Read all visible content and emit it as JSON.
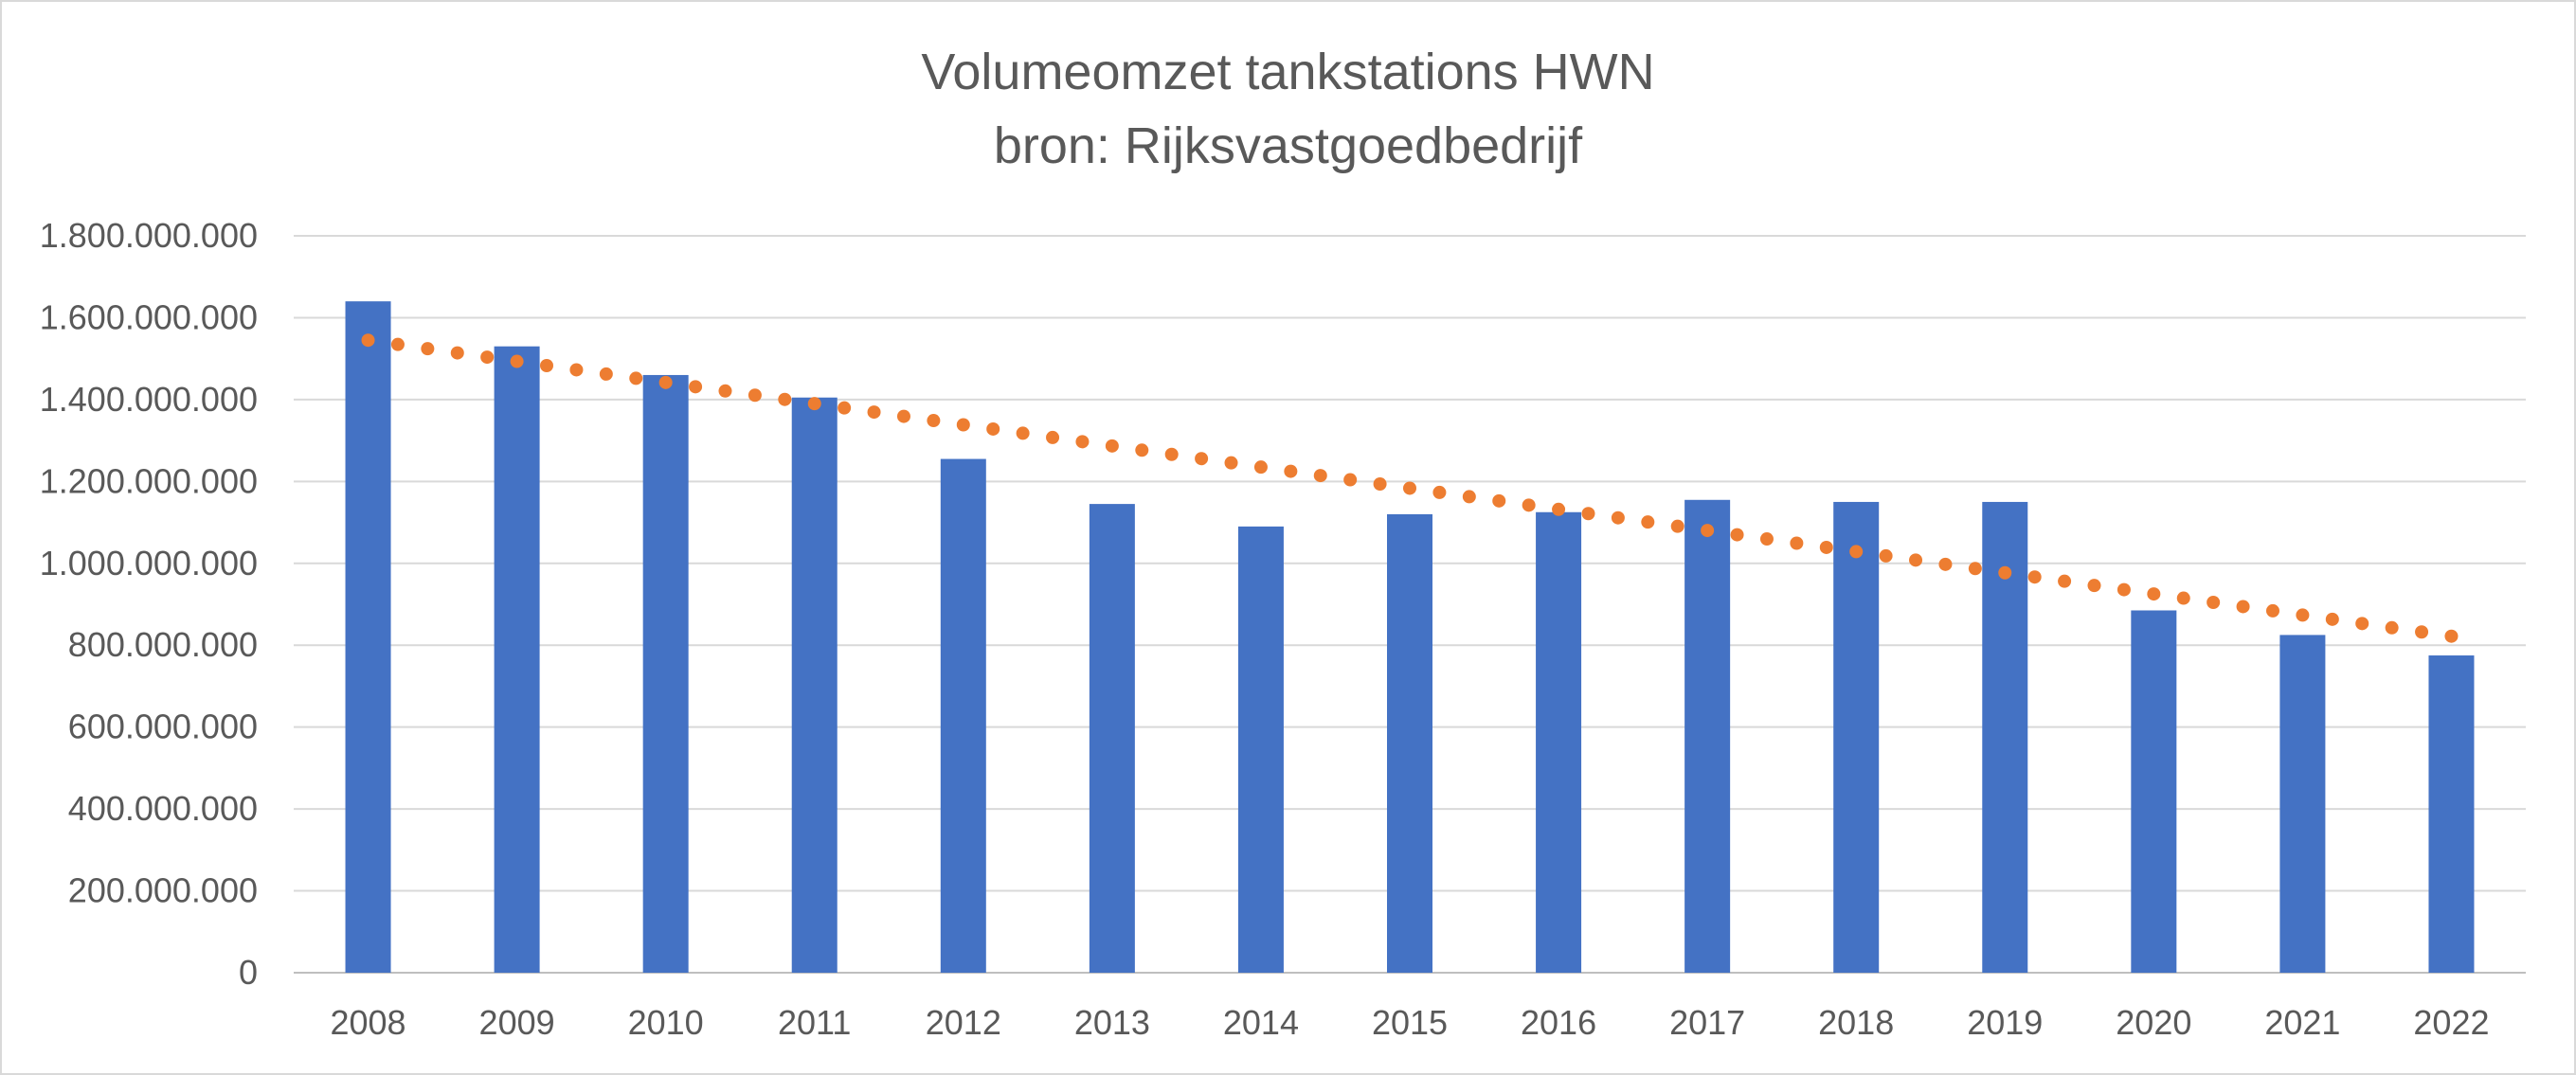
{
  "chart_data": {
    "type": "bar",
    "title": "Volumeomzet tankstations HWN",
    "subtitle": "bron: Rijksvastgoedbedrijf",
    "categories": [
      "2008",
      "2009",
      "2010",
      "2011",
      "2012",
      "2013",
      "2014",
      "2015",
      "2016",
      "2017",
      "2018",
      "2019",
      "2020",
      "2021",
      "2022"
    ],
    "series": [
      {
        "type": "bar",
        "color": "#4472c4",
        "values": [
          1640000000,
          1530000000,
          1460000000,
          1405000000,
          1255000000,
          1145000000,
          1090000000,
          1120000000,
          1125000000,
          1155000000,
          1150000000,
          1150000000,
          885000000,
          825000000,
          775000000
        ]
      },
      {
        "type": "trendline",
        "style": "dotted",
        "color": "#ed7d31",
        "values": [
          1545000000,
          1493000000,
          1442000000,
          1390000000,
          1338000000,
          1287000000,
          1235000000,
          1183000000,
          1132000000,
          1080000000,
          1028000000,
          977000000,
          925000000,
          873000000,
          822000000
        ]
      }
    ],
    "y_ticks": [
      "0",
      "200.000.000",
      "400.000.000",
      "600.000.000",
      "800.000.000",
      "1.000.000.000",
      "1.200.000.000",
      "1.400.000.000",
      "1.600.000.000",
      "1.800.000.000"
    ],
    "ylim": [
      0,
      1800000000
    ],
    "xlabel": "",
    "ylabel": "",
    "grid": "horizontal",
    "legend": "none"
  }
}
